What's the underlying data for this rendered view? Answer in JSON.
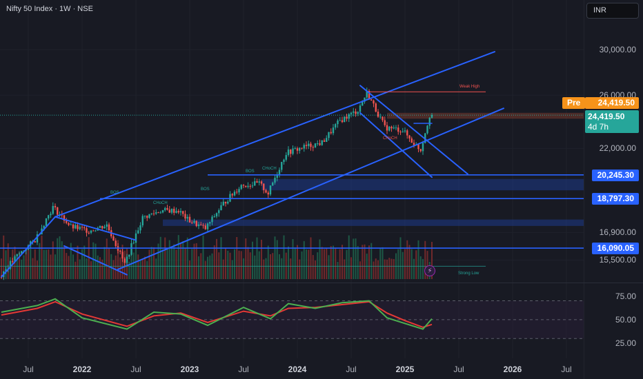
{
  "header": {
    "title": "Nifty 50 Index · 1W · NSE"
  },
  "currency": {
    "label": "INR"
  },
  "price_axis": {
    "labels": [
      {
        "text": "30,000.00",
        "value": 30000
      },
      {
        "text": "26,000.00",
        "value": 26000
      },
      {
        "text": "22,000.00",
        "value": 22000
      },
      {
        "text": "18,797.30",
        "value": 18797.3
      },
      {
        "text": "16,900.00",
        "value": 16900
      },
      {
        "text": "15,500.00",
        "value": 15500
      }
    ],
    "tags": [
      {
        "text": "20,245.30",
        "value": 20245.3
      },
      {
        "text": "18,797.30",
        "value": 18797.3
      },
      {
        "text": "16,090.05",
        "value": 16090.05
      }
    ],
    "pre_badge": "Pre",
    "pre_price": "24,419.50",
    "last_price": "24,419.50",
    "countdown": "4d 7h"
  },
  "rsi_axis": {
    "labels": [
      {
        "text": "75.00",
        "value": 75
      },
      {
        "text": "50.00",
        "value": 50
      },
      {
        "text": "25.00",
        "value": 25
      }
    ]
  },
  "time_axis": [
    {
      "text": "Jul",
      "bold": false,
      "date": "2021-07"
    },
    {
      "text": "2022",
      "bold": true,
      "date": "2022-01"
    },
    {
      "text": "Jul",
      "bold": false,
      "date": "2022-07"
    },
    {
      "text": "2023",
      "bold": true,
      "date": "2023-01"
    },
    {
      "text": "Jul",
      "bold": false,
      "date": "2023-07"
    },
    {
      "text": "2024",
      "bold": true,
      "date": "2024-01"
    },
    {
      "text": "Jul",
      "bold": false,
      "date": "2024-07"
    },
    {
      "text": "2025",
      "bold": true,
      "date": "2025-01"
    },
    {
      "text": "Jul",
      "bold": false,
      "date": "2025-07"
    },
    {
      "text": "2026",
      "bold": true,
      "date": "2026-01"
    },
    {
      "text": "Jul",
      "bold": false,
      "date": "2026-07"
    }
  ],
  "annotations": {
    "weak_high": "Weak High",
    "strong_low": "Strong Low",
    "bos_1": "BOS",
    "bos_2": "BOS",
    "bos_3": "BOS",
    "choch_1": "CHoCH",
    "choch_2": "CHoCH",
    "choch_3": "CHoCH"
  },
  "colors": {
    "background": "#181a23",
    "bull": "#26a69a",
    "bear": "#ef5350",
    "trendline": "#2962ff",
    "rsi": "#4caf50",
    "rsi_ma": "#e53935",
    "pre": "#f7931a"
  },
  "chart_data": {
    "type": "candlestick",
    "title": "Nifty 50 Index · 1W · NSE",
    "currency": "INR",
    "x_range": [
      "2021-03",
      "2026-12"
    ],
    "y_range": [
      14600,
      31000
    ],
    "y_scale": "log",
    "price_series": [
      [
        "2021-04",
        14700
      ],
      [
        "2021-06",
        15700
      ],
      [
        "2021-08",
        16500
      ],
      [
        "2021-10",
        18300
      ],
      [
        "2021-12",
        17200
      ],
      [
        "2022-02",
        17000
      ],
      [
        "2022-04",
        17300
      ],
      [
        "2022-06",
        15300
      ],
      [
        "2022-08",
        17700
      ],
      [
        "2022-10",
        18100
      ],
      [
        "2022-12",
        18100
      ],
      [
        "2023-01",
        17600
      ],
      [
        "2023-03",
        17100
      ],
      [
        "2023-05",
        18500
      ],
      [
        "2023-07",
        19600
      ],
      [
        "2023-09",
        19700
      ],
      [
        "2023-10",
        19100
      ],
      [
        "2023-12",
        21700
      ],
      [
        "2024-02",
        22100
      ],
      [
        "2024-04",
        22400
      ],
      [
        "2024-06",
        24000
      ],
      [
        "2024-08",
        24800
      ],
      [
        "2024-09",
        26200
      ],
      [
        "2024-11",
        23500
      ],
      [
        "2025-01",
        23300
      ],
      [
        "2025-02",
        22500
      ],
      [
        "2025-03",
        21900
      ],
      [
        "2025-04",
        24419.5
      ]
    ],
    "horizontal_levels": [
      {
        "label": "20,245.30",
        "value": 20245.3
      },
      {
        "label": "18,797.30",
        "value": 18797.3
      },
      {
        "label": "16,090.05",
        "value": 16090.05
      },
      {
        "label": "Weak High",
        "value": 26277
      }
    ],
    "current_price": 24419.5,
    "rsi": {
      "ylim": [
        20,
        85
      ],
      "levels": [
        70,
        50,
        30
      ],
      "values": [
        [
          "2021-04",
          58
        ],
        [
          "2021-08",
          65
        ],
        [
          "2021-10",
          72
        ],
        [
          "2022-01",
          52
        ],
        [
          "2022-06",
          40
        ],
        [
          "2022-09",
          58
        ],
        [
          "2022-12",
          56
        ],
        [
          "2023-03",
          44
        ],
        [
          "2023-07",
          63
        ],
        [
          "2023-10",
          51
        ],
        [
          "2023-12",
          67
        ],
        [
          "2024-03",
          62
        ],
        [
          "2024-06",
          68
        ],
        [
          "2024-09",
          70
        ],
        [
          "2024-11",
          52
        ],
        [
          "2025-01",
          46
        ],
        [
          "2025-03",
          40
        ],
        [
          "2025-04",
          51
        ]
      ],
      "ma_values": [
        [
          "2021-04",
          55
        ],
        [
          "2021-08",
          62
        ],
        [
          "2021-10",
          69
        ],
        [
          "2022-01",
          56
        ],
        [
          "2022-06",
          43
        ],
        [
          "2022-09",
          54
        ],
        [
          "2022-12",
          57
        ],
        [
          "2023-03",
          47
        ],
        [
          "2023-07",
          59
        ],
        [
          "2023-10",
          54
        ],
        [
          "2023-12",
          62
        ],
        [
          "2024-03",
          63
        ],
        [
          "2024-06",
          66
        ],
        [
          "2024-09",
          69
        ],
        [
          "2024-11",
          57
        ],
        [
          "2025-01",
          49
        ],
        [
          "2025-03",
          42
        ],
        [
          "2025-04",
          45
        ]
      ]
    }
  }
}
